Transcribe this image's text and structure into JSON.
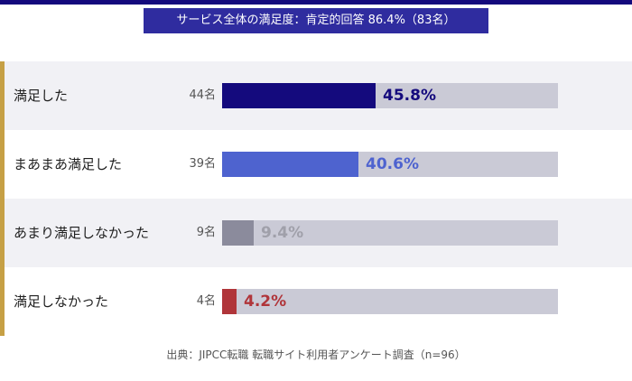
{
  "chart_data": {
    "type": "bar",
    "title": "サービス全体の満足度：肯定的回答 86.4%（83名）",
    "categories": [
      "満足した",
      "まあまあ満足した",
      "あまり満足しなかった",
      "満足しなかった"
    ],
    "counts": [
      "44名",
      "39名",
      "9名",
      "4名"
    ],
    "values": [
      45.8,
      40.6,
      9.4,
      4.2
    ],
    "value_labels": [
      "45.8%",
      "40.6%",
      "9.4%",
      "4.2%"
    ],
    "bar_colors": [
      "#140a7d",
      "#4e63cf",
      "#8b8b9c",
      "#b0353a"
    ],
    "label_colors": [
      "#140a7d",
      "#4e63cf",
      "#a0a0aa",
      "#b0353a"
    ],
    "track_color": "#cacad6",
    "ylim": [
      0,
      100
    ],
    "source": "出典：JIPCC転職 転職サイト利用者アンケート調査（n=96）"
  }
}
